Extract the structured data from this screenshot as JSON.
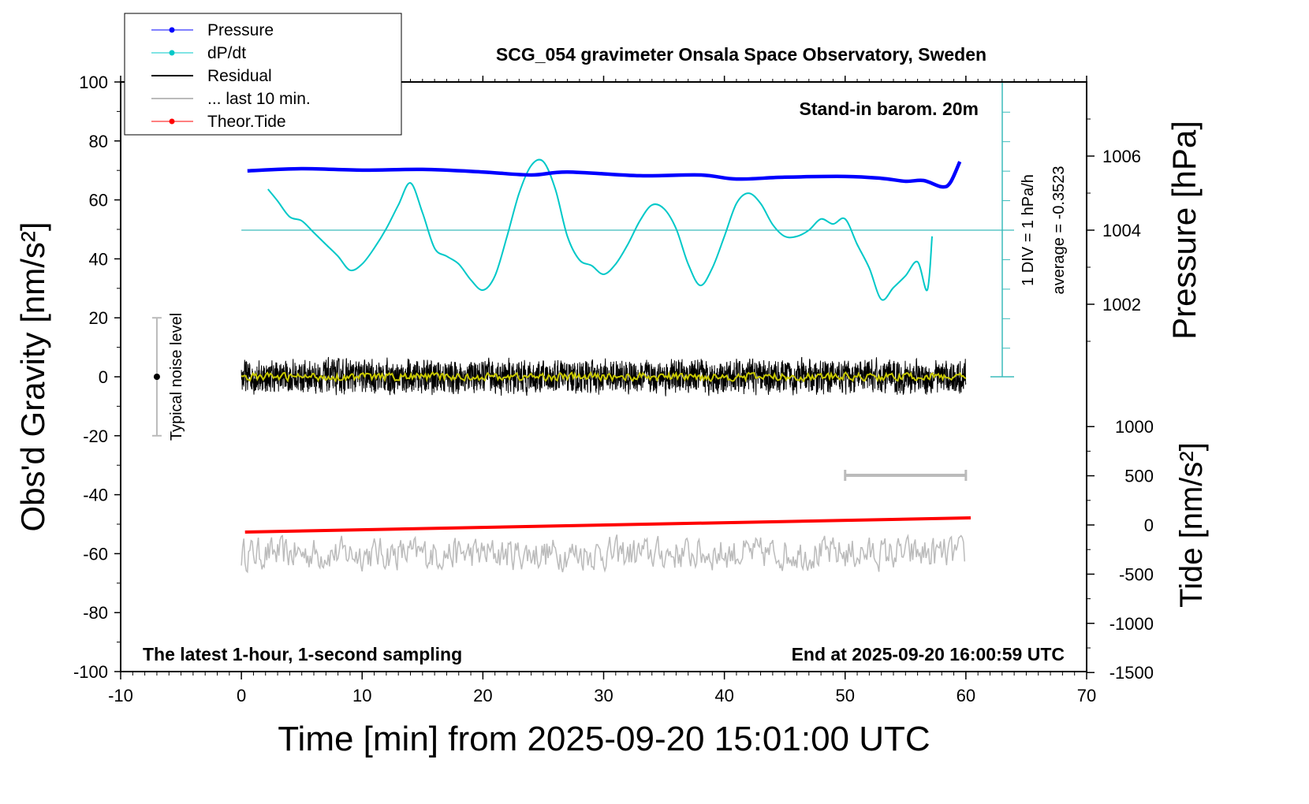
{
  "chart_data": {
    "type": "line",
    "title": "SCG_054 gravimeter Onsala Space Observatory, Sweden",
    "xlabel": "Time [min] from 2025-09-20 15:01:00 UTC",
    "ylabel_left": "Obs'd Gravity [nm/s²]",
    "ylabel_right_top": "Pressure [hPa]",
    "ylabel_right_bottom": "Tide [nm/s²]",
    "xlim": [
      -10,
      70
    ],
    "ylim": [
      -100,
      100
    ],
    "pressure_lim": [
      998,
      1006
    ],
    "tide_lim": [
      -1500,
      1500
    ],
    "x_ticks": [
      "-10",
      "0",
      "10",
      "20",
      "30",
      "40",
      "50",
      "60",
      "70"
    ],
    "y_ticks": [
      "100",
      "80",
      "60",
      "40",
      "20",
      "0",
      "-20",
      "-40",
      "-60",
      "-80",
      "-100"
    ],
    "pressure_ticks": [
      "1006",
      "1004",
      "1002"
    ],
    "tide_ticks": [
      "1000",
      "500",
      "0",
      "-500",
      "-1000",
      "-1500"
    ],
    "annotations": {
      "barometer": "Stand-in barom. 20m",
      "div": "1 DIV = 1 hPa/h",
      "average": "average = -0.3523",
      "noise": "Typical noise level",
      "bottom_left": "The latest 1-hour, 1-second sampling",
      "bottom_right": "End at 2025-09-20 16:00:59 UTC"
    },
    "legend": {
      "placement": "top-left",
      "entries": [
        {
          "label": "Pressure",
          "color": "#0000ff"
        },
        {
          "label": "dP/dt",
          "color": "#00c8c8"
        },
        {
          "label": "Residual",
          "color": "#000000"
        },
        {
          "label": "... last 10 min.",
          "color": "#bbbbbb"
        },
        {
          "label": "Theor.Tide",
          "color": "#ff0000"
        }
      ]
    },
    "series": [
      {
        "name": "Pressure",
        "unit": "hPa",
        "color": "#0000ff",
        "x": [
          0.5,
          5,
          10,
          15,
          20,
          24,
          27,
          33,
          38,
          41,
          45,
          50,
          53,
          55,
          56.5,
          58,
          58.7,
          59.5
        ],
        "y": [
          1005.6,
          1005.66,
          1005.62,
          1005.64,
          1005.57,
          1005.49,
          1005.57,
          1005.47,
          1005.49,
          1005.38,
          1005.43,
          1005.45,
          1005.4,
          1005.32,
          1005.34,
          1005.17,
          1005.28,
          1005.85
        ]
      },
      {
        "name": "dP/dt",
        "unit": "hPa/h relative to average",
        "color": "#00c8c8",
        "x": [
          2.2,
          3,
          4,
          5,
          6,
          7,
          8,
          9,
          10,
          11,
          12,
          13,
          14,
          15,
          16,
          17,
          18,
          19,
          20,
          21,
          22,
          23,
          24,
          25,
          26,
          27,
          28,
          29,
          30,
          31,
          32,
          33,
          34,
          35,
          36,
          37,
          38,
          39,
          40,
          41,
          42,
          43,
          44,
          45,
          46,
          47,
          48,
          49,
          50,
          51,
          52,
          53,
          54,
          55,
          56,
          56.8,
          57.2
        ],
        "y": [
          1.32,
          0.94,
          0.43,
          0.3,
          -0.08,
          -0.46,
          -0.84,
          -1.29,
          -1.09,
          -0.58,
          0.05,
          0.81,
          1.52,
          0.56,
          -0.58,
          -0.84,
          -1.09,
          -1.6,
          -1.93,
          -1.47,
          -0.2,
          1.19,
          2.08,
          2.21,
          1.32,
          -0.2,
          -0.96,
          -1.14,
          -1.42,
          -1.09,
          -0.46,
          0.3,
          0.81,
          0.69,
          0.05,
          -1.09,
          -1.78,
          -1.22,
          -0.2,
          0.86,
          1.19,
          0.86,
          0.18,
          -0.2,
          -0.2,
          0,
          0.36,
          0.2,
          0.36,
          -0.46,
          -1.22,
          -2.23,
          -1.85,
          -1.47,
          -1.02,
          -1.93,
          -0.2
        ]
      },
      {
        "name": "Residual",
        "unit": "nm/s²",
        "color": "#000000",
        "x_range": [
          0,
          60
        ],
        "mean": 0,
        "noise_amplitude": 5
      },
      {
        "name": "Residual smoothed",
        "unit": "nm/s²",
        "color": "#c8c800",
        "x_range": [
          0,
          60
        ],
        "mean": 0,
        "noise_amplitude": 1.2
      },
      {
        "name": "... last 10 min.",
        "unit": "nm/s² (offset -60)",
        "color": "#bbbbbb",
        "x_range": [
          0,
          60
        ],
        "mean": -60,
        "noise_amplitude": 5,
        "window_min": [
          50,
          60
        ]
      },
      {
        "name": "Theor.Tide",
        "unit": "nm/s²",
        "color": "#ff0000",
        "x": [
          0.3,
          60.4
        ],
        "y": [
          -72,
          72
        ]
      }
    ],
    "noise_level_bar": {
      "x": -7,
      "range": [
        -20,
        20
      ]
    }
  }
}
